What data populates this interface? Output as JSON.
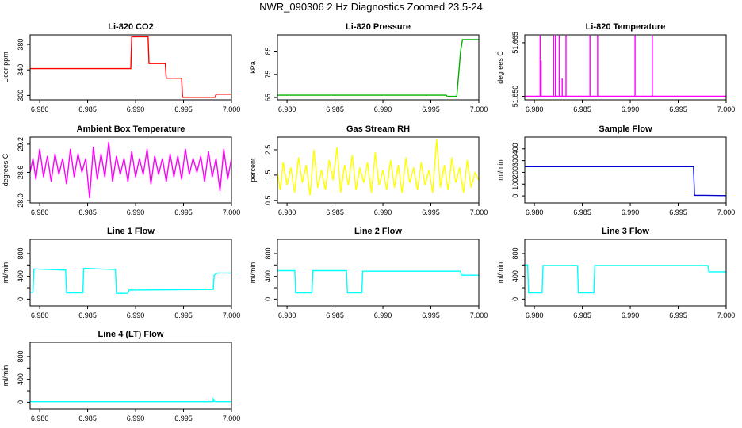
{
  "page_title": "NWR_090306  2 Hz Diagnostics Zoomed 23.5-24",
  "chart_data": [
    {
      "type": "line",
      "title": "Li-820 CO2",
      "ylabel": "Licor ppm",
      "color": "#ff0000",
      "xlim": [
        6.979,
        7.0
      ],
      "ylim": [
        293,
        395
      ],
      "x_ticks": [
        6.98,
        6.985,
        6.99,
        6.995,
        7.0
      ],
      "x_tick_labels": [
        "6.980",
        "6.985",
        "6.990",
        "6.995",
        "7.000"
      ],
      "y_ticks": [
        300,
        340,
        380
      ],
      "y_tick_labels": [
        "300",
        "340",
        "380"
      ],
      "series": [
        {
          "x": [
            6.979,
            6.9895,
            6.9896,
            6.9913,
            6.9914,
            6.9931,
            6.9932,
            6.9948,
            6.9949,
            6.9983,
            6.9984,
            7.0
          ],
          "y": [
            342,
            342,
            392,
            392,
            350,
            350,
            327,
            327,
            297,
            297,
            302,
            302
          ]
        }
      ]
    },
    {
      "type": "line",
      "title": "Li-820 Pressure",
      "ylabel": "kPa",
      "color": "#00b000",
      "xlim": [
        6.979,
        7.0
      ],
      "ylim": [
        64,
        92
      ],
      "x_ticks": [
        6.98,
        6.985,
        6.99,
        6.995,
        7.0
      ],
      "x_tick_labels": [
        "6.980",
        "6.985",
        "6.990",
        "6.995",
        "7.000"
      ],
      "y_ticks": [
        65,
        75,
        85
      ],
      "y_tick_labels": [
        "65",
        "75",
        "85"
      ],
      "series": [
        {
          "x": [
            6.979,
            6.9966,
            6.9967,
            6.9977,
            6.9979,
            6.9981,
            6.9983,
            7.0
          ],
          "y": [
            66,
            66,
            65.5,
            65.5,
            75,
            85,
            90,
            90
          ]
        }
      ]
    },
    {
      "type": "line",
      "title": "Li-820 Temperature",
      "ylabel": "degrees C",
      "color": "#ff00ff",
      "xlim": [
        6.979,
        7.0
      ],
      "ylim": [
        51.649,
        51.6672
      ],
      "x_ticks": [
        6.98,
        6.985,
        6.99,
        6.995,
        7.0
      ],
      "x_tick_labels": [
        "6.980",
        "6.985",
        "6.990",
        "6.995",
        "7.000"
      ],
      "y_ticks": [
        51.65,
        51.665
      ],
      "y_tick_labels": [
        "51.650",
        "51.665"
      ],
      "series": [
        {
          "x": [
            6.979,
            6.9806,
            6.9806,
            6.9806,
            6.9807,
            6.9807,
            6.9807,
            6.982,
            6.982,
            6.982,
            6.9822,
            6.9822,
            6.9822,
            6.9826,
            6.9826,
            6.9826,
            6.9829,
            6.9829,
            6.9829,
            6.9833,
            6.9833,
            6.9833,
            6.9858,
            6.9858,
            6.9858,
            6.9866,
            6.9866,
            6.9866,
            6.9905,
            6.9905,
            6.9905,
            6.9923,
            6.9923,
            6.9923,
            7.0
          ],
          "y": [
            51.65,
            51.65,
            51.667,
            51.65,
            51.65,
            51.66,
            51.65,
            51.65,
            51.667,
            51.65,
            51.65,
            51.667,
            51.65,
            51.65,
            51.667,
            51.65,
            51.65,
            51.655,
            51.65,
            51.65,
            51.667,
            51.65,
            51.65,
            51.667,
            51.65,
            51.65,
            51.667,
            51.65,
            51.65,
            51.667,
            51.65,
            51.65,
            51.667,
            51.65,
            51.65
          ]
        }
      ]
    },
    {
      "type": "line",
      "title": "Ambient Box Temperature",
      "ylabel": "degrees C",
      "color": "#ff00ff",
      "xlim": [
        6.979,
        7.0
      ],
      "ylim": [
        27.95,
        29.35
      ],
      "x_ticks": [
        6.98,
        6.985,
        6.99,
        6.995,
        7.0
      ],
      "x_tick_labels": [
        "6.980",
        "6.985",
        "6.990",
        "6.995",
        "7.000"
      ],
      "y_ticks": [
        28.0,
        28.6,
        29.2
      ],
      "y_tick_labels": [
        "28.0",
        "28.6",
        "29.2"
      ],
      "series": [
        {
          "x": [
            6.979,
            6.9793,
            6.9796,
            6.98,
            6.9804,
            6.9808,
            6.9812,
            6.9816,
            6.982,
            6.9824,
            6.9828,
            6.9832,
            6.9836,
            6.984,
            6.9844,
            6.9848,
            6.9852,
            6.9856,
            6.986,
            6.9864,
            6.9868,
            6.9872,
            6.9876,
            6.988,
            6.9884,
            6.9888,
            6.9892,
            6.9896,
            6.99,
            6.9904,
            6.9908,
            6.9912,
            6.9916,
            6.992,
            6.9924,
            6.9928,
            6.9932,
            6.9936,
            6.994,
            6.9944,
            6.9948,
            6.9952,
            6.9956,
            6.996,
            6.9964,
            6.9968,
            6.9972,
            6.9976,
            6.998,
            6.9984,
            6.9988,
            6.9992,
            6.9996,
            7.0
          ],
          "y": [
            28.6,
            28.9,
            28.45,
            29.1,
            28.5,
            28.95,
            28.4,
            29.0,
            28.55,
            28.9,
            28.35,
            29.1,
            28.5,
            29.0,
            28.6,
            28.9,
            28.05,
            29.15,
            28.45,
            29.0,
            28.5,
            29.25,
            28.4,
            28.95,
            28.55,
            28.9,
            28.4,
            29.05,
            28.5,
            28.9,
            28.55,
            29.1,
            28.35,
            28.95,
            28.55,
            28.9,
            28.4,
            29.0,
            28.5,
            28.95,
            28.45,
            29.1,
            28.55,
            28.9,
            28.6,
            28.95,
            28.4,
            29.05,
            28.5,
            28.9,
            28.2,
            29.1,
            28.45,
            28.9
          ]
        }
      ]
    },
    {
      "type": "line",
      "title": "Gas Stream RH",
      "ylabel": "percent",
      "color": "#ffff00",
      "xlim": [
        6.979,
        7.0
      ],
      "ylim": [
        0.4,
        3.0
      ],
      "x_ticks": [
        6.98,
        6.985,
        6.99,
        6.995,
        7.0
      ],
      "x_tick_labels": [
        "6.980",
        "6.985",
        "6.990",
        "6.995",
        "7.000"
      ],
      "y_ticks": [
        0.5,
        1.5,
        2.5
      ],
      "y_tick_labels": [
        "0.5",
        "1.5",
        "2.5"
      ],
      "series": [
        {
          "x": [
            6.979,
            6.9793,
            6.9796,
            6.98,
            6.9804,
            6.9808,
            6.9812,
            6.9816,
            6.982,
            6.9824,
            6.9828,
            6.9832,
            6.9836,
            6.984,
            6.9844,
            6.9848,
            6.9852,
            6.9856,
            6.986,
            6.9864,
            6.9868,
            6.9872,
            6.9876,
            6.988,
            6.9884,
            6.9888,
            6.9892,
            6.9896,
            6.99,
            6.9904,
            6.9908,
            6.9912,
            6.9916,
            6.992,
            6.9924,
            6.9928,
            6.9932,
            6.9936,
            6.994,
            6.9944,
            6.9948,
            6.9952,
            6.9956,
            6.996,
            6.9964,
            6.9968,
            6.9972,
            6.9976,
            6.998,
            6.9984,
            6.9988,
            6.9992,
            6.9996,
            7.0
          ],
          "y": [
            1.6,
            0.9,
            2.0,
            1.1,
            1.8,
            0.8,
            2.2,
            1.2,
            1.9,
            0.7,
            2.5,
            1.0,
            1.7,
            0.9,
            2.1,
            1.3,
            2.6,
            0.8,
            1.9,
            1.1,
            2.3,
            0.9,
            1.8,
            1.2,
            2.0,
            0.8,
            2.4,
            1.1,
            1.7,
            0.9,
            2.1,
            1.0,
            1.9,
            0.8,
            2.2,
            1.2,
            1.8,
            0.9,
            2.0,
            1.1,
            1.7,
            0.8,
            2.9,
            1.0,
            1.9,
            0.9,
            2.2,
            1.2,
            1.8,
            0.8,
            2.1,
            1.0,
            1.6,
            1.3
          ]
        }
      ]
    },
    {
      "type": "line",
      "title": "Sample Flow",
      "ylabel": "ml/min",
      "color": "#0000cc",
      "xlim": [
        6.979,
        7.0
      ],
      "ylim": [
        -60,
        500
      ],
      "x_ticks": [
        6.98,
        6.985,
        6.99,
        6.995,
        7.0
      ],
      "x_tick_labels": [
        "6.980",
        "6.985",
        "6.990",
        "6.995",
        "7.000"
      ],
      "y_ticks": [
        0,
        100,
        200,
        300,
        400
      ],
      "y_tick_labels": [
        "0",
        "100",
        "200",
        "300",
        "400"
      ],
      "series": [
        {
          "x": [
            6.979,
            6.9966,
            6.9966,
            6.9967,
            6.9975,
            7.0
          ],
          "y": [
            248,
            248,
            230,
            5,
            5,
            2
          ]
        }
      ]
    },
    {
      "type": "line",
      "title": "Line 1 Flow",
      "ylabel": "ml/min",
      "color": "#00ffff",
      "xlim": [
        6.979,
        7.0
      ],
      "ylim": [
        -120,
        1050
      ],
      "x_ticks": [
        6.98,
        6.985,
        6.99,
        6.995,
        7.0
      ],
      "x_tick_labels": [
        "6.980",
        "6.985",
        "6.990",
        "6.995",
        "7.000"
      ],
      "y_ticks": [
        0,
        200,
        400,
        600,
        800
      ],
      "y_tick_labels": [
        "0",
        "400",
        "800"
      ],
      "series": [
        {
          "x": [
            6.979,
            6.9793,
            6.9794,
            6.9827,
            6.9828,
            6.9845,
            6.9846,
            6.9879,
            6.988,
            6.9892,
            6.9893,
            6.9981,
            6.9982,
            6.9985,
            7.0
          ],
          "y": [
            120,
            120,
            530,
            510,
            110,
            110,
            540,
            520,
            100,
            100,
            160,
            170,
            420,
            460,
            460
          ]
        }
      ]
    },
    {
      "type": "line",
      "title": "Line 2 Flow",
      "ylabel": "ml/min",
      "color": "#00ffff",
      "xlim": [
        6.979,
        7.0
      ],
      "ylim": [
        -120,
        1050
      ],
      "x_ticks": [
        6.98,
        6.985,
        6.99,
        6.995,
        7.0
      ],
      "x_tick_labels": [
        "6.980",
        "6.985",
        "6.990",
        "6.995",
        "7.000"
      ],
      "y_ticks": [
        0,
        200,
        400,
        600,
        800
      ],
      "y_tick_labels": [
        "0",
        "400",
        "800"
      ],
      "series": [
        {
          "x": [
            6.979,
            6.9808,
            6.9809,
            6.9826,
            6.9827,
            6.9862,
            6.9863,
            6.9878,
            6.9879,
            6.9981,
            6.9982,
            7.0
          ],
          "y": [
            500,
            500,
            110,
            110,
            500,
            500,
            110,
            110,
            490,
            490,
            420,
            420
          ]
        }
      ]
    },
    {
      "type": "line",
      "title": "Line 3 Flow",
      "ylabel": "ml/min",
      "color": "#00ffff",
      "xlim": [
        6.979,
        7.0
      ],
      "ylim": [
        -120,
        1050
      ],
      "x_ticks": [
        6.98,
        6.985,
        6.99,
        6.995,
        7.0
      ],
      "x_tick_labels": [
        "6.980",
        "6.985",
        "6.990",
        "6.995",
        "7.000"
      ],
      "y_ticks": [
        0,
        200,
        400,
        600,
        800
      ],
      "y_tick_labels": [
        "0",
        "400",
        "800"
      ],
      "series": [
        {
          "x": [
            6.979,
            6.9793,
            6.9794,
            6.9808,
            6.9809,
            6.9845,
            6.9846,
            6.9862,
            6.9863,
            6.9981,
            6.9982,
            7.0
          ],
          "y": [
            600,
            600,
            110,
            110,
            590,
            590,
            110,
            110,
            590,
            590,
            480,
            480
          ]
        }
      ]
    },
    {
      "type": "line",
      "title": "Line 4 (LT) Flow",
      "ylabel": "ml/min",
      "color": "#00ffff",
      "xlim": [
        6.979,
        7.0
      ],
      "ylim": [
        -120,
        1050
      ],
      "x_ticks": [
        6.98,
        6.985,
        6.99,
        6.995,
        7.0
      ],
      "x_tick_labels": [
        "6.980",
        "6.985",
        "6.990",
        "6.995",
        "7.000"
      ],
      "y_ticks": [
        0,
        200,
        400,
        600,
        800
      ],
      "y_tick_labels": [
        "0",
        "400",
        "800"
      ],
      "series": [
        {
          "x": [
            6.979,
            6.9981,
            6.9981,
            6.9982,
            6.9983,
            7.0
          ],
          "y": [
            10,
            10,
            50,
            20,
            10,
            10
          ]
        }
      ]
    }
  ]
}
